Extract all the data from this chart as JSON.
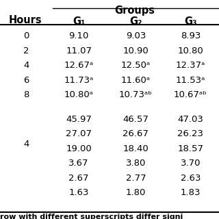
{
  "title": "Groups",
  "col_header_label": "Hours",
  "col_headers": [
    "G₁",
    "G₂",
    "G₃"
  ],
  "rows_top": [
    {
      "hour": "0",
      "g1": "9.10",
      "g2": "9.03",
      "g3": "8.93"
    },
    {
      "hour": "2",
      "g1": "11.07",
      "g2": "10.90",
      "g3": "10.80"
    },
    {
      "hour": "4",
      "g1": "12.67ᵃ",
      "g2": "12.50ᵃ",
      "g3": "12.37ᵃ"
    },
    {
      "hour": "6",
      "g1": "11.73ᵃ",
      "g2": "11.60ᵃ",
      "g3": "11.53ᵃ"
    },
    {
      "hour": "8",
      "g1": "10.80ᵃ",
      "g2": "10.73ᵃᵇ",
      "g3": "10.67ᵃᵇ"
    }
  ],
  "rows_bottom_hour": "4",
  "rows_bottom": [
    {
      "g1": "45.97",
      "g2": "46.57",
      "g3": "47.03"
    },
    {
      "g1": "27.07",
      "g2": "26.67",
      "g3": "26.23"
    },
    {
      "g1": "19.00",
      "g2": "18.40",
      "g3": "18.57"
    },
    {
      "g1": "3.67",
      "g2": "3.80",
      "g3": "3.70"
    },
    {
      "g1": "2.67",
      "g2": "2.77",
      "g3": "2.63"
    },
    {
      "g1": "1.63",
      "g2": "1.80",
      "g3": "1.83"
    }
  ],
  "footer": "row with different superscripts differ signi",
  "bg_color": "#ffffff",
  "text_color": "#000000",
  "font_size": 9.5,
  "header_font_size": 10.5
}
